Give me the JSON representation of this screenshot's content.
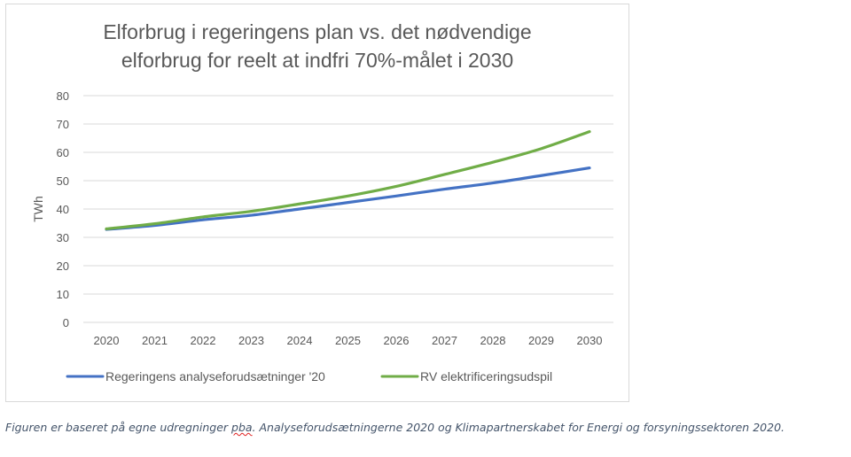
{
  "chart_data": {
    "type": "line",
    "title": "Elforbrug i regeringens plan vs. det nødvendige elforbrug for reelt at indfri 70%-målet i 2030",
    "title_lines": [
      "Elforbrug i regeringens plan vs. det nødvendige",
      "elforbrug for reelt at indfri 70%-målet i 2030"
    ],
    "xlabel": "",
    "ylabel": "TWh",
    "x": [
      "2020",
      "2021",
      "2022",
      "2023",
      "2024",
      "2025",
      "2026",
      "2027",
      "2028",
      "2029",
      "2030"
    ],
    "ylim": [
      0,
      80
    ],
    "yticks": [
      0,
      10,
      20,
      30,
      40,
      50,
      60,
      70,
      80
    ],
    "grid": true,
    "legend_position": "bottom",
    "series": [
      {
        "name": "Regeringens analyseforudsætninger '20",
        "color": "#4472c4",
        "values": [
          32.8,
          34.2,
          36.2,
          37.8,
          40.0,
          42.3,
          44.6,
          47.0,
          49.2,
          51.8,
          54.5
        ]
      },
      {
        "name": "RV elektrificeringsudspil",
        "color": "#70ad47",
        "values": [
          33.0,
          34.8,
          37.2,
          39.2,
          41.8,
          44.6,
          48.0,
          52.2,
          56.5,
          61.3,
          67.3
        ]
      }
    ]
  },
  "caption": {
    "before": "Figuren er baseret på egne udregninger ",
    "flagged_word": "pba",
    "after": ". Analyseforudsætningerne 2020 og Klimapartnerskabet for Energi og forsyningssektoren 2020."
  }
}
